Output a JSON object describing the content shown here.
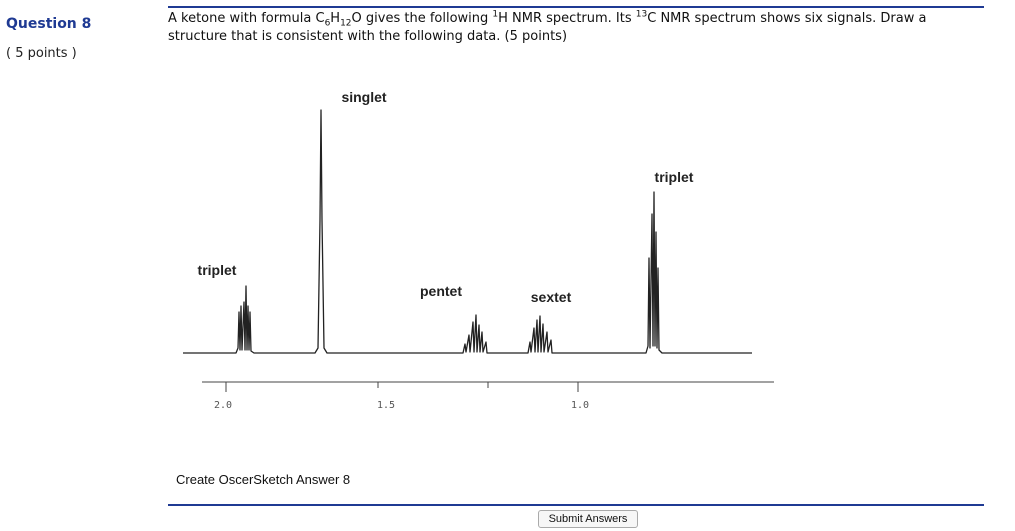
{
  "sidebar": {
    "question_title": "Question 8",
    "points": "( 5 points )"
  },
  "question": {
    "part1": "A ketone with formula C",
    "sub1": "6",
    "part2": "H",
    "sub2": "12",
    "part3": "O gives the following ",
    "sup1": "1",
    "part4": "H NMR spectrum.  Its ",
    "sup2": "13",
    "part5": "C NMR spectrum shows six signals.  Draw a structure that is consistent with the following data.  (5 points)"
  },
  "spectrum": {
    "peak_labels": {
      "triplet_left": "triplet",
      "singlet": "singlet",
      "pentet": "pentet",
      "sextet": "sextet",
      "triplet_right": "triplet"
    },
    "axis_ticks": [
      "2.0",
      "1.5",
      "1.0"
    ]
  },
  "actions": {
    "create_label": "Create OscerSketch Answer 8",
    "submit_label": "Submit Answers"
  }
}
